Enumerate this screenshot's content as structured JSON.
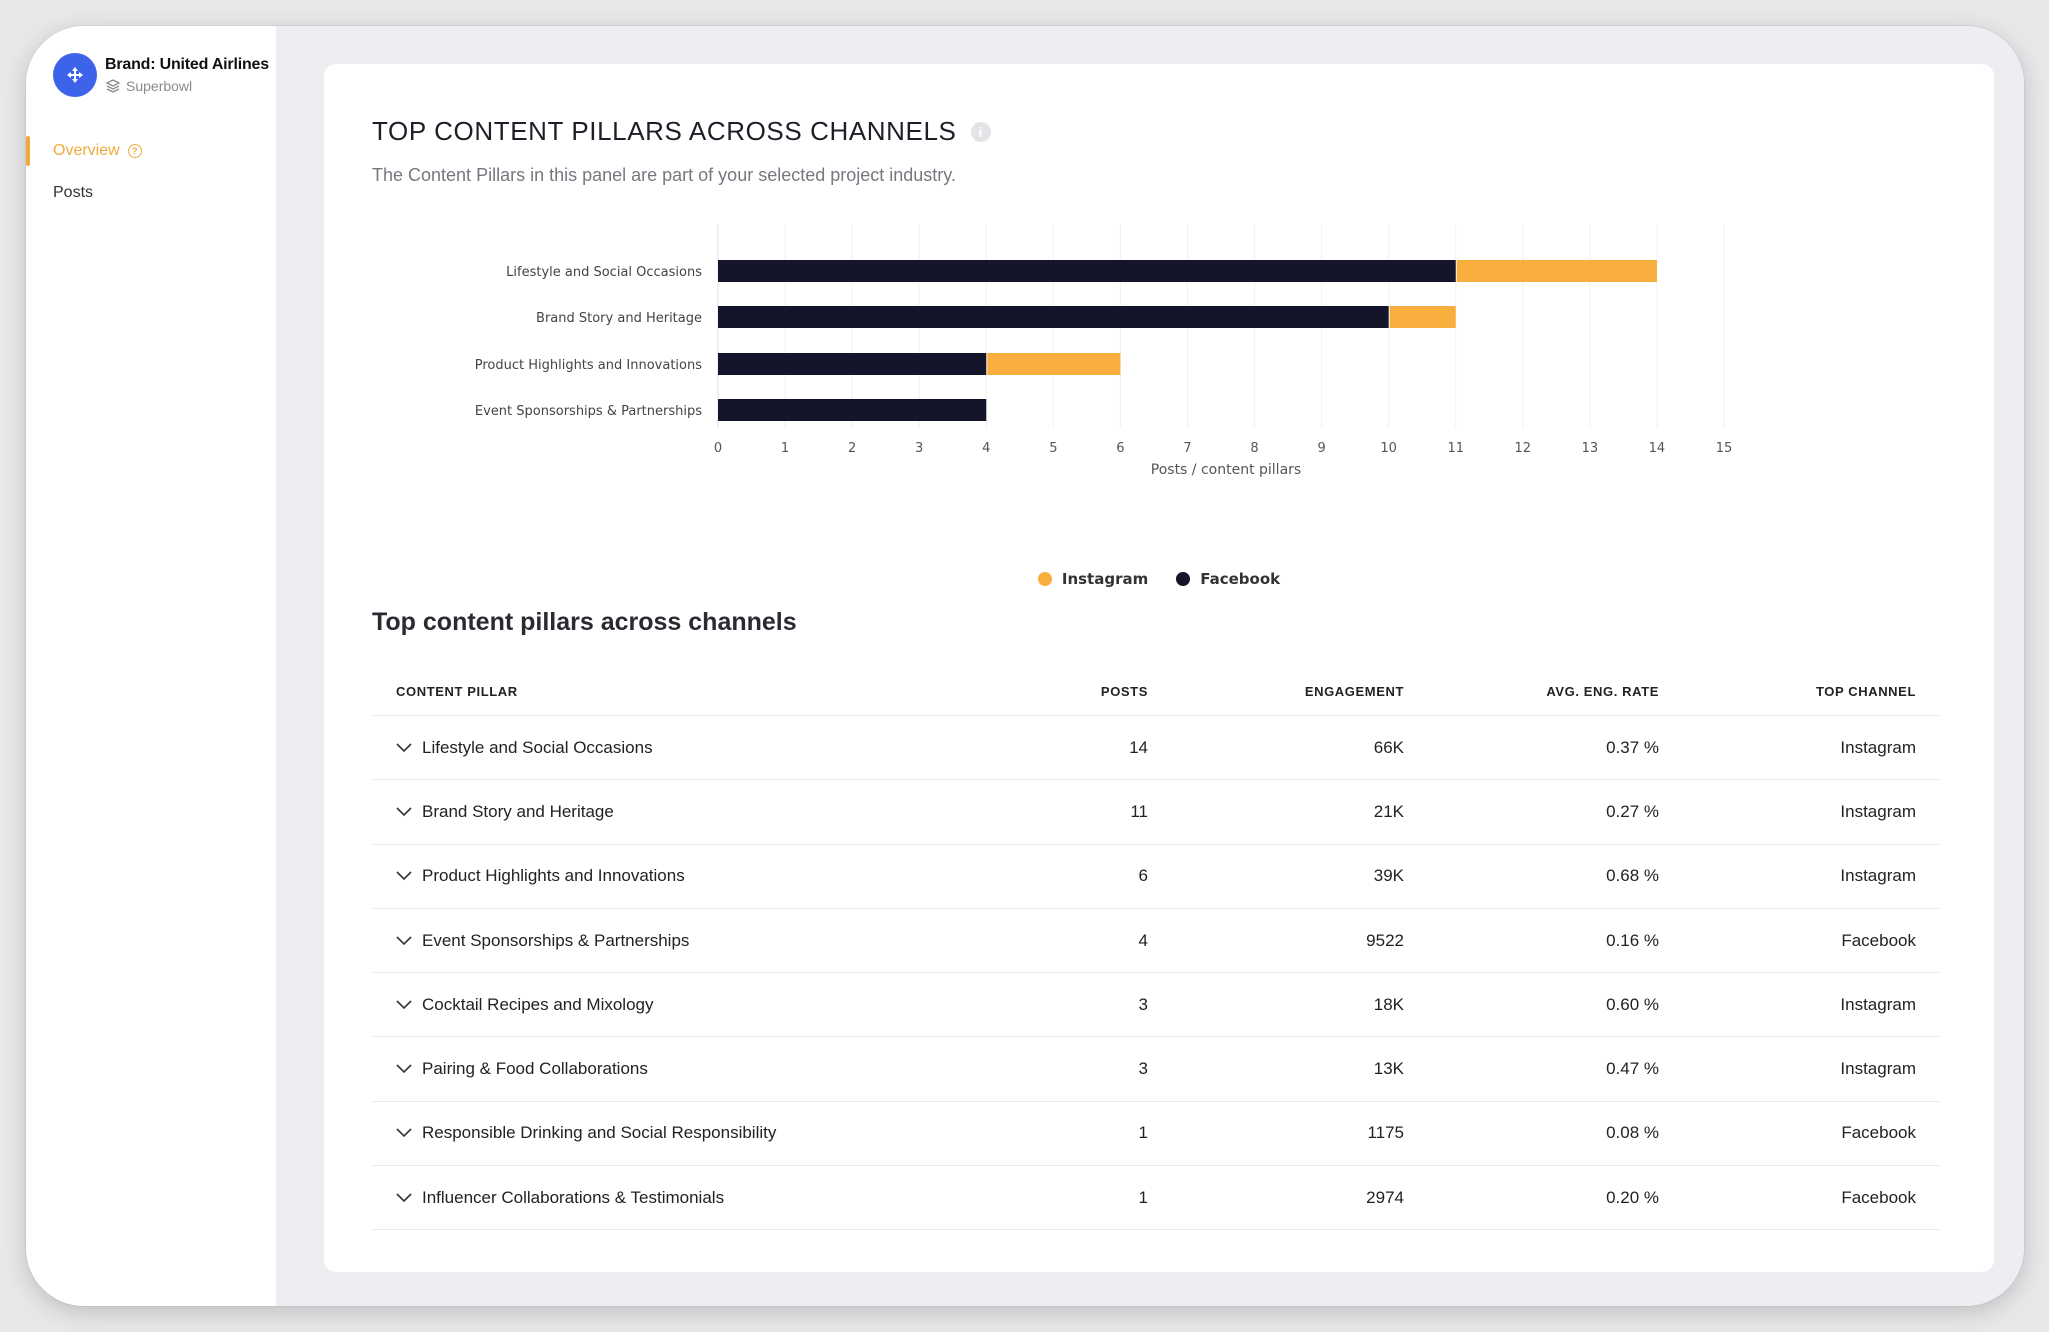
{
  "sidebar": {
    "brand_name": "Brand: United Airlines",
    "brand_sub": "Superbowl",
    "nav": [
      {
        "label": "Overview",
        "active": true
      },
      {
        "label": "Posts",
        "active": false
      }
    ]
  },
  "panel": {
    "title": "TOP CONTENT PILLARS ACROSS CHANNELS",
    "subtitle": "The Content Pillars in this panel are part of your selected project industry."
  },
  "colors": {
    "instagram": "#f8ae3c",
    "facebook": "#14142b",
    "accent": "#f2a93b",
    "brand": "#3d63ea"
  },
  "chart_data": {
    "type": "bar",
    "orientation": "horizontal",
    "stacked": true,
    "categories": [
      "Lifestyle and Social Occasions",
      "Brand Story and Heritage",
      "Product Highlights and Innovations",
      "Event Sponsorships & Partnerships"
    ],
    "series": [
      {
        "name": "Facebook",
        "values": [
          11,
          10,
          4,
          4
        ]
      },
      {
        "name": "Instagram",
        "values": [
          3,
          1,
          2,
          0
        ]
      }
    ],
    "xlabel": "Posts / content pillars",
    "xlim": [
      0,
      15
    ],
    "xticks": [
      "0",
      "1",
      "2",
      "3",
      "4",
      "5",
      "6",
      "7",
      "8",
      "9",
      "10",
      "11",
      "12",
      "13",
      "14",
      "15"
    ],
    "grid": true,
    "legend": [
      {
        "name": "Instagram"
      },
      {
        "name": "Facebook"
      }
    ],
    "legend_position": "bottom"
  },
  "table": {
    "title": "Top content pillars across channels",
    "headers": [
      "CONTENT PILLAR",
      "POSTS",
      "ENGAGEMENT",
      "AVG. ENG. RATE",
      "TOP CHANNEL"
    ],
    "rows": [
      {
        "pillar": "Lifestyle and Social Occasions",
        "posts": "14",
        "engagement": "66K",
        "rate": "0.37 %",
        "channel": "Instagram"
      },
      {
        "pillar": "Brand Story and Heritage",
        "posts": "11",
        "engagement": "21K",
        "rate": "0.27 %",
        "channel": "Instagram"
      },
      {
        "pillar": "Product Highlights and Innovations",
        "posts": "6",
        "engagement": "39K",
        "rate": "0.68 %",
        "channel": "Instagram"
      },
      {
        "pillar": "Event Sponsorships & Partnerships",
        "posts": "4",
        "engagement": "9522",
        "rate": "0.16 %",
        "channel": "Facebook"
      },
      {
        "pillar": "Cocktail Recipes and Mixology",
        "posts": "3",
        "engagement": "18K",
        "rate": "0.60 %",
        "channel": "Instagram"
      },
      {
        "pillar": "Pairing & Food Collaborations",
        "posts": "3",
        "engagement": "13K",
        "rate": "0.47 %",
        "channel": "Instagram"
      },
      {
        "pillar": "Responsible Drinking and Social Responsibility",
        "posts": "1",
        "engagement": "1175",
        "rate": "0.08 %",
        "channel": "Facebook"
      },
      {
        "pillar": "Influencer Collaborations & Testimonials",
        "posts": "1",
        "engagement": "2974",
        "rate": "0.20 %",
        "channel": "Facebook"
      }
    ]
  }
}
